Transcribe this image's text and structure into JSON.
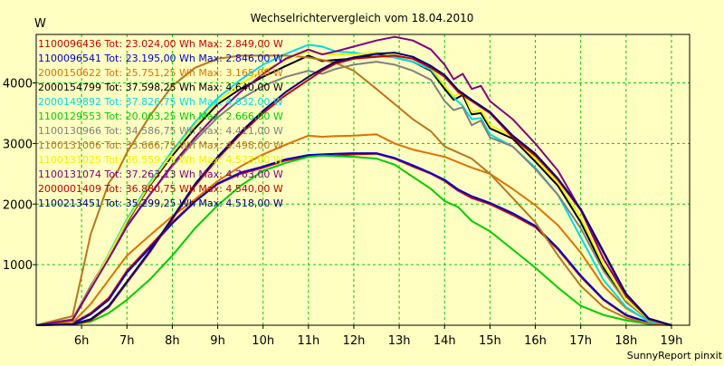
{
  "chart_data": {
    "type": "line",
    "title": "Wechselrichtervergleich vom 18.04.2010",
    "ylabel": "W",
    "xlabel": "",
    "footer": "SunnyReport pinxit",
    "xlim": [
      5.0,
      19.4
    ],
    "ylim": [
      0,
      4800
    ],
    "x_ticks": [
      6,
      7,
      8,
      9,
      10,
      11,
      12,
      13,
      14,
      15,
      16,
      17,
      18,
      19
    ],
    "x_tick_labels": [
      "6h",
      "7h",
      "8h",
      "9h",
      "10h",
      "11h",
      "12h",
      "13h",
      "14h",
      "15h",
      "16h",
      "17h",
      "18h",
      "19h"
    ],
    "y_ticks": [
      1000,
      2000,
      3000,
      4000
    ],
    "y_tick_labels": [
      "1000",
      "2000",
      "3000",
      "4000"
    ],
    "grid": true,
    "legend_position": "top-left",
    "colors": {
      "background": "#FFFFC2",
      "grid": "#00CC00",
      "axis": "#000000"
    },
    "series": [
      {
        "name": "1100096436",
        "label": "1100096436 Tot: 23.024,00 Wh Max: 2.849,00 W",
        "color": "#CC0000",
        "x": [
          5.0,
          5.8,
          6.2,
          6.6,
          7.0,
          7.5,
          8.0,
          8.5,
          9.0,
          9.5,
          10.0,
          10.5,
          11.0,
          11.3,
          11.6,
          12.0,
          12.5,
          12.9,
          13.3,
          13.7,
          14.0,
          14.3,
          14.6,
          15.0,
          15.5,
          16.0,
          16.5,
          17.0,
          17.5,
          18.0,
          18.5,
          19.0
        ],
        "y": [
          0,
          30,
          200,
          450,
          900,
          1300,
          1700,
          2050,
          2330,
          2500,
          2600,
          2720,
          2790,
          2800,
          2800,
          2820,
          2830,
          2750,
          2620,
          2500,
          2380,
          2220,
          2100,
          2000,
          1820,
          1620,
          1250,
          800,
          420,
          160,
          40,
          0
        ]
      },
      {
        "name": "1100096541",
        "label": "1100096541 Tot: 23.195,00 Wh Max: 2.846,00 W",
        "color": "#0000CC",
        "x": [
          5.0,
          5.8,
          6.2,
          6.6,
          7.0,
          7.5,
          8.0,
          8.5,
          9.0,
          9.5,
          10.0,
          10.5,
          11.0,
          11.3,
          11.6,
          12.0,
          12.5,
          12.9,
          13.3,
          13.7,
          14.0,
          14.3,
          14.6,
          15.0,
          15.5,
          16.0,
          16.5,
          17.0,
          17.5,
          18.0,
          18.5,
          19.0
        ],
        "y": [
          0,
          20,
          180,
          420,
          870,
          1270,
          1680,
          2040,
          2340,
          2520,
          2620,
          2740,
          2810,
          2820,
          2830,
          2840,
          2840,
          2760,
          2640,
          2510,
          2400,
          2240,
          2130,
          2020,
          1850,
          1640,
          1270,
          820,
          430,
          170,
          45,
          0
        ]
      },
      {
        "name": "2000150622",
        "label": "2000150622 Tot: 25.751,25 Wh Max: 3.165,00 W",
        "color": "#E07000",
        "x": [
          5.0,
          5.8,
          6.2,
          6.6,
          7.0,
          7.5,
          8.0,
          8.5,
          9.0,
          9.5,
          10.0,
          10.5,
          11.0,
          11.3,
          11.6,
          12.0,
          12.5,
          12.9,
          13.3,
          13.7,
          14.0,
          14.3,
          14.6,
          15.0,
          15.5,
          16.0,
          16.5,
          17.0,
          17.5,
          18.0,
          18.5,
          19.0
        ],
        "y": [
          0,
          40,
          350,
          750,
          1150,
          1480,
          1800,
          2080,
          2380,
          2620,
          2820,
          2980,
          3130,
          3110,
          3120,
          3130,
          3150,
          3000,
          2900,
          2830,
          2780,
          2690,
          2600,
          2500,
          2250,
          1980,
          1650,
          1200,
          650,
          280,
          70,
          0
        ]
      },
      {
        "name": "2000154799",
        "label": "2000154799 Tot: 37.598,25 Wh Max: 4.640,00 W",
        "color": "#000000",
        "x": [
          5.0,
          5.8,
          6.2,
          6.6,
          7.0,
          7.5,
          8.0,
          8.5,
          9.0,
          9.5,
          10.0,
          10.5,
          11.0,
          11.3,
          11.6,
          12.0,
          12.5,
          12.9,
          13.3,
          13.7,
          14.0,
          14.2,
          14.4,
          14.6,
          14.8,
          15.0,
          15.5,
          16.0,
          16.5,
          17.0,
          17.5,
          18.0,
          18.5,
          19.0
        ],
        "y": [
          0,
          80,
          600,
          1150,
          1700,
          2300,
          2800,
          3250,
          3650,
          3900,
          4100,
          4280,
          4450,
          4360,
          4380,
          4400,
          4470,
          4420,
          4350,
          4200,
          3900,
          3720,
          3800,
          3480,
          3500,
          3250,
          3080,
          2700,
          2300,
          1700,
          950,
          400,
          90,
          0
        ]
      },
      {
        "name": "2000149892",
        "label": "2000149892 Tot: 37.826,75 Wh Max: 4.632,00 W",
        "color": "#00D8E8",
        "x": [
          5.0,
          5.8,
          6.2,
          6.6,
          7.0,
          7.5,
          8.0,
          8.5,
          9.0,
          9.5,
          10.0,
          10.5,
          11.0,
          11.3,
          11.6,
          12.0,
          12.5,
          12.9,
          13.3,
          13.7,
          14.0,
          14.2,
          14.4,
          14.6,
          14.8,
          15.0,
          15.5,
          16.0,
          16.5,
          17.0,
          17.5,
          18.0,
          18.5,
          19.0
        ],
        "y": [
          0,
          90,
          620,
          1180,
          1750,
          2350,
          2880,
          3350,
          3750,
          4050,
          4300,
          4480,
          4630,
          4600,
          4520,
          4500,
          4450,
          4420,
          4350,
          4220,
          3950,
          3760,
          3620,
          3400,
          3420,
          3150,
          2950,
          2600,
          2150,
          1450,
          750,
          300,
          60,
          0
        ]
      },
      {
        "name": "1100129553",
        "label": "1100129553 Tot: 20.063,25 Wh Max: 2.666,00 W",
        "color": "#00CC00",
        "x": [
          5.0,
          5.8,
          6.2,
          6.6,
          7.0,
          7.5,
          8.0,
          8.5,
          9.0,
          9.5,
          10.0,
          10.5,
          11.0,
          11.3,
          11.6,
          12.0,
          12.5,
          12.9,
          13.3,
          13.7,
          14.0,
          14.3,
          14.6,
          15.0,
          15.5,
          16.0,
          16.5,
          17.0,
          17.5,
          18.0,
          18.5,
          19.0
        ],
        "y": [
          0,
          10,
          60,
          200,
          420,
          750,
          1150,
          1600,
          1980,
          2300,
          2550,
          2680,
          2780,
          2800,
          2790,
          2780,
          2750,
          2650,
          2450,
          2250,
          2050,
          1950,
          1720,
          1550,
          1250,
          950,
          620,
          320,
          170,
          80,
          20,
          0
        ]
      },
      {
        "name": "1100130966",
        "label": "1100130966 Tot: 34.586,75 Wh Max: 4.411,00 W",
        "color": "#808080",
        "x": [
          5.0,
          5.8,
          6.2,
          6.6,
          7.0,
          7.5,
          8.0,
          8.5,
          9.0,
          9.5,
          10.0,
          10.5,
          11.0,
          11.3,
          11.6,
          12.0,
          12.5,
          12.9,
          13.3,
          13.7,
          14.0,
          14.2,
          14.4,
          14.6,
          14.8,
          15.0,
          15.5,
          16.0,
          16.5,
          17.0,
          17.5,
          18.0,
          18.5,
          19.0
        ],
        "y": [
          0,
          100,
          650,
          1150,
          1650,
          2150,
          2620,
          3050,
          3430,
          3730,
          3950,
          4100,
          4200,
          4150,
          4230,
          4300,
          4350,
          4300,
          4200,
          4050,
          3700,
          3550,
          3600,
          3300,
          3380,
          3100,
          2950,
          2580,
          2150,
          1600,
          900,
          380,
          90,
          0
        ]
      },
      {
        "name": "1100131006",
        "label": "1100131006 Tot: 35.666,75 Wh Max: 4.498,00 W",
        "color": "#B8761C",
        "x": [
          5.0,
          5.8,
          6.2,
          6.6,
          6.8,
          7.0,
          7.5,
          8.0,
          8.5,
          9.0,
          9.5,
          10.0,
          10.5,
          11.0,
          11.3,
          11.6,
          12.0,
          12.5,
          12.9,
          13.3,
          13.7,
          14.0,
          14.3,
          14.6,
          15.0,
          15.5,
          16.0,
          16.5,
          17.0,
          17.5,
          18.0,
          18.5,
          19.0
        ],
        "y": [
          0,
          150,
          1500,
          2350,
          2550,
          2850,
          3450,
          3950,
          4250,
          4400,
          4450,
          4450,
          4450,
          4420,
          4380,
          4330,
          4200,
          3900,
          3650,
          3400,
          3200,
          2950,
          2850,
          2750,
          2500,
          2100,
          1700,
          1150,
          650,
          300,
          120,
          30,
          0
        ]
      },
      {
        "name": "1100131025",
        "label": "1100131025 Tot: 36.559,25 Wh Max: 4.573,00 W",
        "color": "#F0F000",
        "x": [
          5.0,
          5.8,
          6.2,
          6.6,
          7.0,
          7.5,
          8.0,
          8.5,
          9.0,
          9.5,
          10.0,
          10.5,
          11.0,
          11.3,
          11.6,
          12.0,
          12.5,
          12.9,
          13.3,
          13.7,
          14.0,
          14.2,
          14.4,
          14.6,
          14.8,
          15.0,
          15.5,
          16.0,
          16.5,
          17.0,
          17.5,
          18.0,
          18.5,
          19.0
        ],
        "y": [
          0,
          85,
          610,
          1160,
          1720,
          2320,
          2840,
          3300,
          3700,
          3980,
          4200,
          4380,
          4530,
          4480,
          4470,
          4470,
          4500,
          4460,
          4400,
          4260,
          3950,
          3780,
          3850,
          3520,
          3550,
          3300,
          3120,
          2750,
          2350,
          1780,
          1000,
          420,
          100,
          0
        ]
      },
      {
        "name": "1100131074",
        "label": "1100131074 Tot: 37.263,13 Wh Max: 4.763,00 W",
        "color": "#800080",
        "x": [
          5.0,
          5.8,
          6.2,
          6.6,
          7.0,
          7.5,
          8.0,
          8.5,
          9.0,
          9.5,
          10.0,
          10.5,
          11.0,
          11.3,
          11.6,
          12.0,
          12.5,
          12.9,
          13.3,
          13.7,
          14.0,
          14.2,
          14.4,
          14.6,
          14.8,
          15.0,
          15.5,
          16.0,
          16.5,
          17.0,
          17.5,
          18.0,
          18.5,
          19.0
        ],
        "y": [
          0,
          90,
          600,
          1100,
          1630,
          2150,
          2650,
          3100,
          3500,
          3850,
          4150,
          4400,
          4550,
          4470,
          4520,
          4600,
          4700,
          4760,
          4700,
          4550,
          4300,
          4060,
          4150,
          3900,
          3950,
          3700,
          3400,
          3000,
          2550,
          1900,
          1100,
          480,
          110,
          0
        ]
      },
      {
        "name": "2000001409",
        "label": "2000001409 Tot: 36.880,75 Wh Max: 4.540,00 W",
        "color": "#C00000",
        "x": [
          5.0,
          5.8,
          6.2,
          6.6,
          7.0,
          7.5,
          8.0,
          8.5,
          9.0,
          9.5,
          10.0,
          10.5,
          11.0,
          11.3,
          11.6,
          12.0,
          12.5,
          12.9,
          13.3,
          13.7,
          14.0,
          14.3,
          14.6,
          15.0,
          15.5,
          16.0,
          16.5,
          17.0,
          17.5,
          18.0,
          18.5,
          19.0
        ],
        "y": [
          0,
          10,
          80,
          300,
          700,
          1200,
          1750,
          2300,
          2750,
          3150,
          3500,
          3800,
          4050,
          4200,
          4320,
          4400,
          4430,
          4450,
          4400,
          4250,
          4100,
          3850,
          3700,
          3500,
          3100,
          2800,
          2400,
          1900,
          1200,
          500,
          100,
          0
        ]
      },
      {
        "name": "1100213451",
        "label": "1100213451 Tot: 35.299,25 Wh Max: 4.518,00 W",
        "color": "#000080",
        "x": [
          5.0,
          5.8,
          6.2,
          6.6,
          7.0,
          7.5,
          8.0,
          8.5,
          9.0,
          9.5,
          10.0,
          10.5,
          11.0,
          11.3,
          11.6,
          12.0,
          12.5,
          12.9,
          13.3,
          13.7,
          14.0,
          14.3,
          14.6,
          15.0,
          15.5,
          16.0,
          16.5,
          17.0,
          17.5,
          18.0,
          18.5,
          19.0
        ],
        "y": [
          0,
          15,
          100,
          320,
          720,
          1220,
          1770,
          2330,
          2780,
          3180,
          3540,
          3850,
          4100,
          4230,
          4350,
          4420,
          4480,
          4500,
          4430,
          4280,
          4130,
          3880,
          3720,
          3520,
          3130,
          2830,
          2420,
          1920,
          1220,
          520,
          110,
          0
        ]
      }
    ]
  }
}
